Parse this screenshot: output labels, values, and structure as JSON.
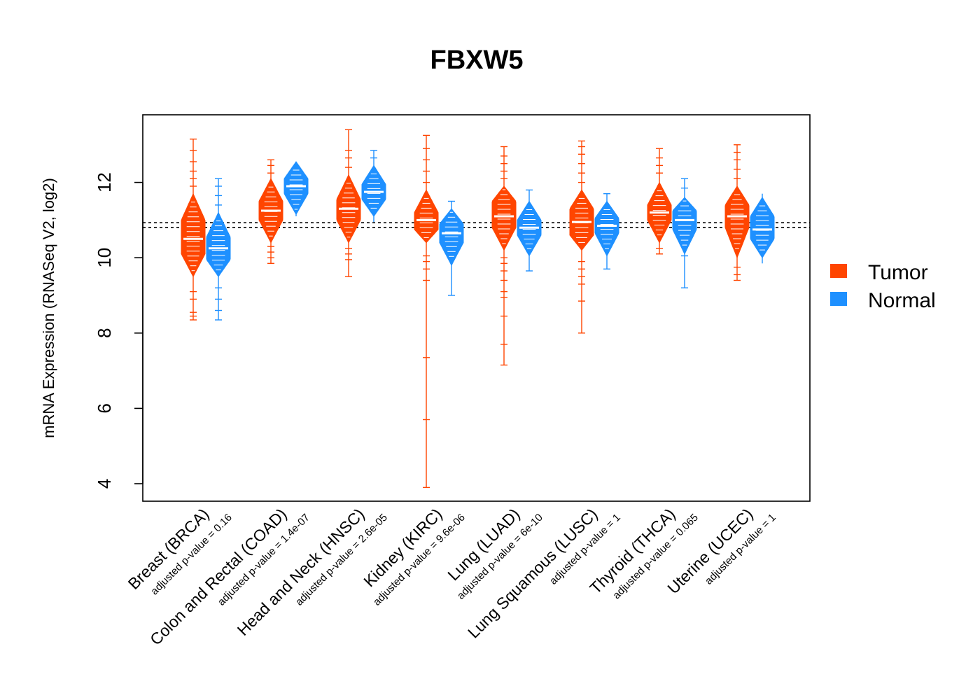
{
  "chart_data": {
    "type": "violin",
    "title": "FBXW5",
    "xlabel": "",
    "ylabel": "mRNA Expression (RNASeq V2, log2)",
    "ylim": [
      3.55,
      13.8
    ],
    "yticks": [
      4,
      6,
      8,
      10,
      12
    ],
    "grid": false,
    "legend_position": "right",
    "reference_lines": [
      10.93,
      10.8
    ],
    "colors": {
      "Tumor": "#ff4500",
      "Normal": "#1e90ff"
    },
    "legend": [
      {
        "label": "Tumor",
        "color": "#ff4500"
      },
      {
        "label": "Normal",
        "color": "#1e90ff"
      }
    ],
    "categories": [
      {
        "name": "Breast (BRCA)",
        "pvalue_label": "adjusted p-value = 0.16",
        "tumor": {
          "min": 8.35,
          "max": 13.15,
          "median": 10.5,
          "q1": 10.1,
          "q3": 11.0,
          "body": [
            9.5,
            11.7
          ],
          "outliers": [
            8.35,
            8.45,
            8.55,
            8.9,
            9.1,
            11.9,
            12.1,
            12.3,
            12.55,
            12.85,
            13.15
          ]
        },
        "normal": {
          "min": 8.35,
          "max": 12.1,
          "median": 10.25,
          "q1": 9.95,
          "q3": 10.55,
          "body": [
            9.5,
            11.2
          ],
          "outliers": [
            8.35,
            8.6,
            8.9,
            9.2,
            11.4,
            11.65,
            11.9,
            12.1
          ]
        }
      },
      {
        "name": "Colon and Rectal (COAD)",
        "pvalue_label": "adjusted p-value = 1.4e-07",
        "tumor": {
          "min": 9.85,
          "max": 12.6,
          "median": 11.25,
          "q1": 11.0,
          "q3": 11.5,
          "body": [
            10.4,
            12.1
          ],
          "outliers": [
            9.85,
            10.0,
            10.15,
            10.3,
            12.25,
            12.45,
            12.6
          ]
        },
        "normal": {
          "min": 11.1,
          "max": 12.55,
          "median": 11.9,
          "q1": 11.7,
          "q3": 12.1,
          "body": [
            11.15,
            12.55
          ],
          "outliers": []
        }
      },
      {
        "name": "Head and Neck (HNSC)",
        "pvalue_label": "adjusted p-value = 2.6e-05",
        "tumor": {
          "min": 9.5,
          "max": 13.4,
          "median": 11.3,
          "q1": 11.0,
          "q3": 11.55,
          "body": [
            10.4,
            12.2
          ],
          "outliers": [
            9.5,
            9.95,
            10.1,
            10.25,
            12.4,
            12.65,
            12.85,
            13.4
          ]
        },
        "normal": {
          "min": 10.95,
          "max": 12.85,
          "median": 11.75,
          "q1": 11.55,
          "q3": 11.95,
          "body": [
            11.1,
            12.45
          ],
          "outliers": [
            12.65,
            12.85
          ]
        }
      },
      {
        "name": "Kidney (KIRC)",
        "pvalue_label": "adjusted p-value = 9.6e-06",
        "tumor": {
          "min": 3.9,
          "max": 13.25,
          "median": 11.0,
          "q1": 10.75,
          "q3": 11.2,
          "body": [
            10.4,
            11.8
          ],
          "outliers": [
            3.9,
            5.7,
            7.35,
            9.4,
            9.7,
            9.9,
            10.05,
            12.0,
            12.3,
            12.6,
            12.9,
            13.25
          ]
        },
        "normal": {
          "min": 9.0,
          "max": 11.5,
          "median": 10.65,
          "q1": 10.4,
          "q3": 10.9,
          "body": [
            9.8,
            11.3
          ],
          "outliers": [
            9.0,
            11.5
          ]
        }
      },
      {
        "name": "Lung (LUAD)",
        "pvalue_label": "adjusted p-value = 6e-10",
        "tumor": {
          "min": 7.15,
          "max": 12.95,
          "median": 11.1,
          "q1": 10.8,
          "q3": 11.5,
          "body": [
            10.2,
            11.9
          ],
          "outliers": [
            7.15,
            7.7,
            8.45,
            8.95,
            9.1,
            9.4,
            9.65,
            9.85,
            10.0,
            12.1,
            12.3,
            12.5,
            12.7,
            12.95
          ]
        },
        "normal": {
          "min": 9.65,
          "max": 11.8,
          "median": 10.8,
          "q1": 10.6,
          "q3": 11.0,
          "body": [
            10.05,
            11.5
          ],
          "outliers": [
            9.65,
            11.8
          ]
        }
      },
      {
        "name": "Lung Squamous (LUSC)",
        "pvalue_label": "adjusted p-value = 1",
        "tumor": {
          "min": 8.0,
          "max": 13.1,
          "median": 10.95,
          "q1": 10.6,
          "q3": 11.3,
          "body": [
            10.2,
            11.8
          ],
          "outliers": [
            8.0,
            8.85,
            9.3,
            9.5,
            9.7,
            9.9,
            12.0,
            12.25,
            12.5,
            12.75,
            12.95,
            13.1
          ]
        },
        "normal": {
          "min": 9.7,
          "max": 11.7,
          "median": 10.85,
          "q1": 10.65,
          "q3": 11.05,
          "body": [
            10.05,
            11.5
          ],
          "outliers": [
            9.7,
            11.7
          ]
        }
      },
      {
        "name": "Thyroid (THCA)",
        "pvalue_label": "adjusted p-value = 0.065",
        "tumor": {
          "min": 10.1,
          "max": 12.9,
          "median": 11.2,
          "q1": 11.0,
          "q3": 11.4,
          "body": [
            10.4,
            12.0
          ],
          "outliers": [
            10.1,
            10.25,
            12.25,
            12.45,
            12.65,
            12.9
          ]
        },
        "normal": {
          "min": 9.2,
          "max": 12.1,
          "median": 11.0,
          "q1": 10.75,
          "q3": 11.25,
          "body": [
            10.1,
            11.6
          ],
          "outliers": [
            9.2,
            10.05,
            11.85,
            12.1
          ]
        }
      },
      {
        "name": "Uterine (UCEC)",
        "pvalue_label": "adjusted p-value = 1",
        "tumor": {
          "min": 9.4,
          "max": 13.0,
          "median": 11.1,
          "q1": 10.8,
          "q3": 11.4,
          "body": [
            10.0,
            11.9
          ],
          "outliers": [
            9.4,
            9.55,
            9.75,
            12.1,
            12.35,
            12.6,
            12.8,
            13.0
          ]
        },
        "normal": {
          "min": 9.85,
          "max": 11.7,
          "median": 10.75,
          "q1": 10.5,
          "q3": 11.1,
          "body": [
            10.0,
            11.6
          ],
          "outliers": []
        }
      }
    ]
  }
}
